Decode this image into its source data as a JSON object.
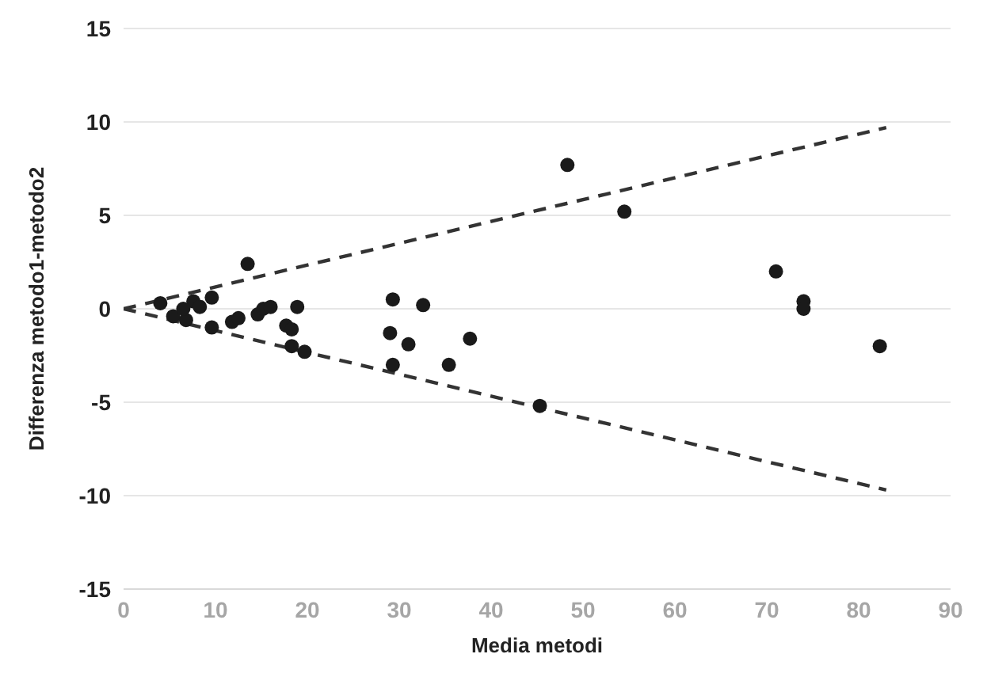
{
  "chart_data": {
    "type": "scatter",
    "xlabel": "Media metodi",
    "ylabel": "Differenza metodo1-metodo2",
    "xlim": [
      0,
      90
    ],
    "xticks": [
      0,
      10,
      20,
      30,
      40,
      50,
      60,
      70,
      80,
      90
    ],
    "ylim": [
      -15,
      15
    ],
    "yticks": [
      -15,
      -10,
      -5,
      0,
      5,
      10,
      15
    ],
    "grid": "y",
    "legend": false,
    "series": [
      {
        "color": "#1a1a1a",
        "marker": "circle",
        "x": [
          4,
          5.4,
          6.8,
          7.6,
          6.5,
          8.3,
          9.6,
          9.6,
          13.5,
          11.8,
          12.5,
          14.6,
          15.2,
          16,
          18.9,
          17.7,
          18.3,
          18.3,
          19.7,
          29,
          29.3,
          29.3,
          48.3,
          54.5,
          71,
          74,
          74,
          82.3,
          45.3,
          35.4,
          37.7,
          31,
          32.6
        ],
        "values": [
          0.3,
          -0.4,
          -0.6,
          0.4,
          0,
          0.1,
          0.6,
          -1,
          2.4,
          -0.7,
          -0.5,
          -0.3,
          0,
          0.1,
          0.1,
          -0.9,
          -1.1,
          -2,
          -2.3,
          -1.3,
          -3,
          0.5,
          7.7,
          5.2,
          2,
          0.4,
          0,
          -2,
          -5.2,
          -3,
          -1.6,
          -1.9,
          0.2
        ]
      },
      {
        "type": "line",
        "color": "#333333",
        "marker": "none",
        "line_style": "dashed",
        "x": [
          0,
          83
        ],
        "values": [
          0,
          9.7
        ]
      },
      {
        "type": "line",
        "color": "#333333",
        "marker": "none",
        "line_style": "dashed",
        "x": [
          0,
          83
        ],
        "values": [
          0,
          -9.7
        ]
      }
    ]
  }
}
